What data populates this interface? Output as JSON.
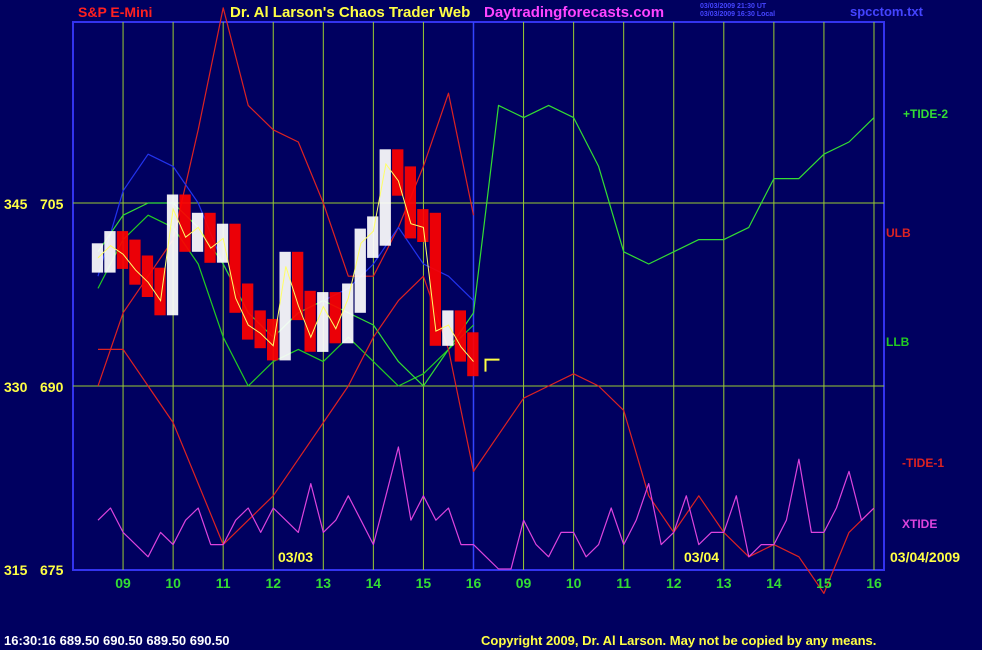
{
  "header": {
    "symbol": "S&P E-Mini",
    "title": "Dr. Al Larson's Chaos Trader Web",
    "site": "Daytradingforecasts.com",
    "timestamp_ut": "03/03/2009 21:30 UT",
    "timestamp_local": "03/03/2009 16:30 Local",
    "filename": "spcctom.txt"
  },
  "footer": {
    "quote": "16:30:16  689.50 690.50 689.50 690.50",
    "copyright": "Copyright 2009, Dr. Al Larson. May not be copied by any means."
  },
  "colors": {
    "background": "#000060",
    "grid": "#9acd32",
    "price_up": "#ffffff",
    "price_down": "#ff0000",
    "tide_plus": "#33dd33",
    "tide_minus": "#dd2222",
    "ulb": "#dd2222",
    "llb": "#22cc22",
    "xtide": "#dd44dd",
    "moving_average": "#2233ee"
  },
  "chart_data": {
    "type": "line",
    "symbol": "S&P E-Mini",
    "y_axis_left": {
      "ticks": [
        {
          "inner": "345",
          "outer": "705",
          "price": 705
        },
        {
          "inner": "330",
          "outer": "690",
          "price": 690
        },
        {
          "inner": "315",
          "outer": "675",
          "price": 675
        }
      ]
    },
    "x_axis": {
      "day1_label": "03/03",
      "day2_label": "03/04",
      "end_date": "03/04/2009",
      "day1_hours": [
        "09",
        "10",
        "11",
        "12",
        "13",
        "14",
        "15",
        "16"
      ],
      "day2_hours": [
        "09",
        "10",
        "11",
        "12",
        "13",
        "14",
        "15",
        "16"
      ]
    },
    "series_labels": {
      "tide_plus": "+TIDE-2",
      "ulb": "ULB",
      "llb": "LLB",
      "tide_minus": "-TIDE-1",
      "xtide": "XTIDE"
    },
    "price_bars": {
      "x": [
        8.5,
        8.75,
        9.0,
        9.25,
        9.5,
        9.75,
        10.0,
        10.25,
        10.5,
        10.75,
        11.0,
        11.25,
        11.5,
        11.75,
        12.0,
        12.25,
        12.5,
        12.75,
        13.0,
        13.25,
        13.5,
        13.75,
        14.0,
        14.25,
        14.5,
        14.75,
        15.0,
        15.25,
        15.5,
        15.75,
        16.0
      ],
      "close": [
        700.5,
        701.5,
        700.8,
        699.5,
        698.5,
        697.0,
        704.5,
        702.2,
        703.0,
        701.3,
        702.1,
        697.2,
        695.0,
        694.3,
        693.3,
        699.8,
        696.6,
        694.0,
        696.5,
        694.7,
        697.2,
        701.7,
        702.7,
        708.2,
        706.8,
        703.3,
        703.0,
        694.5,
        695.0,
        693.2,
        692.0
      ]
    },
    "ulb_line": {
      "x": [
        8.5,
        9.0,
        9.5,
        10.0,
        10.5,
        11.0,
        11.5,
        12.0,
        12.5,
        13.0,
        13.5,
        14.0,
        14.5,
        15.0,
        15.5,
        16.0
      ],
      "y": [
        690,
        696,
        699,
        702,
        711,
        721,
        713,
        711,
        710,
        705,
        699,
        699,
        703,
        708,
        714,
        704
      ]
    },
    "llb_line": {
      "x": [
        8.5,
        9.0,
        9.5,
        10.0,
        10.5,
        11.0,
        11.5,
        12.0,
        12.5,
        13.0,
        13.5,
        14.0,
        14.5,
        15.0,
        15.5,
        16.0
      ],
      "y": [
        698,
        702,
        704,
        703,
        700,
        694,
        690,
        692,
        693,
        692,
        694,
        692,
        690,
        691,
        693,
        695
      ]
    },
    "moving_average_line": {
      "x": [
        8.5,
        9.0,
        9.5,
        10.0,
        10.5,
        11.0,
        11.5,
        12.0,
        12.5,
        13.0,
        13.5,
        14.0,
        14.5,
        15.0,
        15.5,
        16.0
      ],
      "y": [
        699,
        706,
        709,
        708,
        705,
        700,
        696,
        694,
        696,
        697,
        698,
        700,
        703,
        700,
        699,
        697
      ]
    },
    "tide_plus_line": {
      "x": [
        8.5,
        9.0,
        9.5,
        10.0,
        10.5,
        11.0,
        11.5,
        12.0,
        12.5,
        13.0,
        13.5,
        14.0,
        14.5,
        15.0,
        15.5,
        16.0,
        16.5,
        17.0,
        17.5,
        18.0,
        18.5,
        19.0,
        19.5,
        20.0,
        20.5,
        21.0,
        21.5,
        22.0,
        22.5,
        23.0,
        23.5,
        24.0
      ],
      "y": [
        701,
        704,
        705,
        705,
        703,
        700,
        696,
        694,
        696,
        697,
        696,
        695,
        692,
        690,
        693,
        696,
        713,
        712,
        713,
        712,
        708,
        701,
        700,
        701,
        702,
        702,
        703,
        707,
        707,
        709,
        710,
        712
      ]
    },
    "tide_minus_line": {
      "x": [
        8.5,
        9.0,
        9.5,
        10.0,
        10.5,
        11.0,
        11.5,
        12.0,
        12.5,
        13.0,
        13.5,
        14.0,
        14.5,
        15.0,
        15.5,
        16.0,
        16.5,
        17.0,
        17.5,
        18.0,
        18.5,
        19.0,
        19.5,
        20.0,
        20.5,
        21.0,
        21.5,
        22.0,
        22.5,
        23.0,
        23.5,
        24.0
      ],
      "y": [
        693,
        693,
        690,
        687,
        682,
        677,
        679,
        681,
        684,
        687,
        690,
        694,
        697,
        699,
        693,
        683,
        686,
        689,
        690,
        691,
        690,
        688,
        681,
        678,
        681,
        678,
        676,
        677,
        676,
        673,
        678,
        680
      ]
    },
    "xtide_line": {
      "x": [
        8.5,
        8.75,
        9.0,
        9.25,
        9.5,
        9.75,
        10.0,
        10.25,
        10.5,
        10.75,
        11.0,
        11.25,
        11.5,
        11.75,
        12.0,
        12.25,
        12.5,
        12.75,
        13.0,
        13.25,
        13.5,
        13.75,
        14.0,
        14.25,
        14.5,
        14.75,
        15.0,
        15.25,
        15.5,
        15.75,
        16.0,
        16.25,
        16.5,
        16.75,
        17.0,
        17.25,
        17.5,
        17.75,
        18.0,
        18.25,
        18.5,
        18.75,
        19.0,
        19.25,
        19.5,
        19.75,
        20.0,
        20.25,
        20.5,
        20.75,
        21.0,
        21.25,
        21.5,
        21.75,
        22.0,
        22.25,
        22.5,
        22.75,
        23.0,
        23.25,
        23.5,
        23.75,
        24.0
      ],
      "y": [
        679,
        680,
        678,
        677,
        676,
        678,
        677,
        679,
        680,
        677,
        677,
        679,
        680,
        678,
        680,
        679,
        678,
        682,
        678,
        679,
        681,
        679,
        677,
        681,
        685,
        679,
        681,
        679,
        680,
        677,
        677,
        676,
        675,
        675,
        679,
        677,
        676,
        678,
        678,
        676,
        677,
        680,
        677,
        679,
        682,
        677,
        678,
        681,
        677,
        678,
        678,
        681,
        676,
        677,
        677,
        679,
        684,
        678,
        678,
        680,
        683,
        679,
        680
      ]
    }
  }
}
